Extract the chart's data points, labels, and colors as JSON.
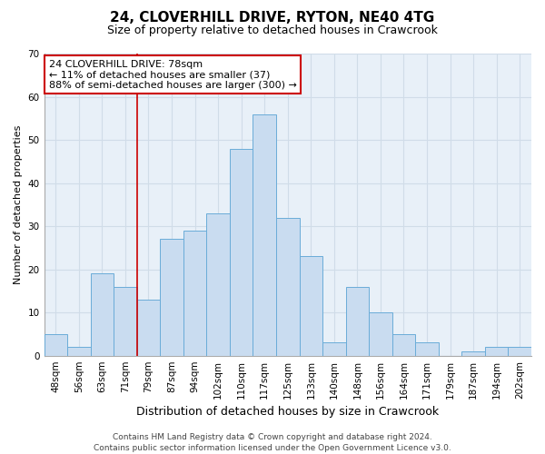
{
  "title": "24, CLOVERHILL DRIVE, RYTON, NE40 4TG",
  "subtitle": "Size of property relative to detached houses in Crawcrook",
  "xlabel": "Distribution of detached houses by size in Crawcrook",
  "ylabel": "Number of detached properties",
  "bar_labels": [
    "48sqm",
    "56sqm",
    "63sqm",
    "71sqm",
    "79sqm",
    "87sqm",
    "94sqm",
    "102sqm",
    "110sqm",
    "117sqm",
    "125sqm",
    "133sqm",
    "140sqm",
    "148sqm",
    "156sqm",
    "164sqm",
    "171sqm",
    "179sqm",
    "187sqm",
    "194sqm",
    "202sqm"
  ],
  "bar_values": [
    5,
    2,
    19,
    16,
    13,
    27,
    29,
    33,
    48,
    56,
    32,
    23,
    3,
    16,
    10,
    5,
    3,
    0,
    1,
    2,
    2
  ],
  "bar_color": "#c9dcf0",
  "bar_edge_color": "#6aacd8",
  "vline_index": 4,
  "vline_color": "#cc0000",
  "ylim": [
    0,
    70
  ],
  "yticks": [
    0,
    10,
    20,
    30,
    40,
    50,
    60,
    70
  ],
  "annotation_line1": "24 CLOVERHILL DRIVE: 78sqm",
  "annotation_line2": "← 11% of detached houses are smaller (37)",
  "annotation_line3": "88% of semi-detached houses are larger (300) →",
  "annotation_box_edge_color": "#cc0000",
  "footer_line1": "Contains HM Land Registry data © Crown copyright and database right 2024.",
  "footer_line2": "Contains public sector information licensed under the Open Government Licence v3.0.",
  "background_color": "#ffffff",
  "grid_color": "#d0dce8",
  "title_fontsize": 11,
  "subtitle_fontsize": 9,
  "ylabel_fontsize": 8,
  "xlabel_fontsize": 9,
  "tick_fontsize": 7.5,
  "footer_fontsize": 6.5,
  "annotation_fontsize": 8
}
